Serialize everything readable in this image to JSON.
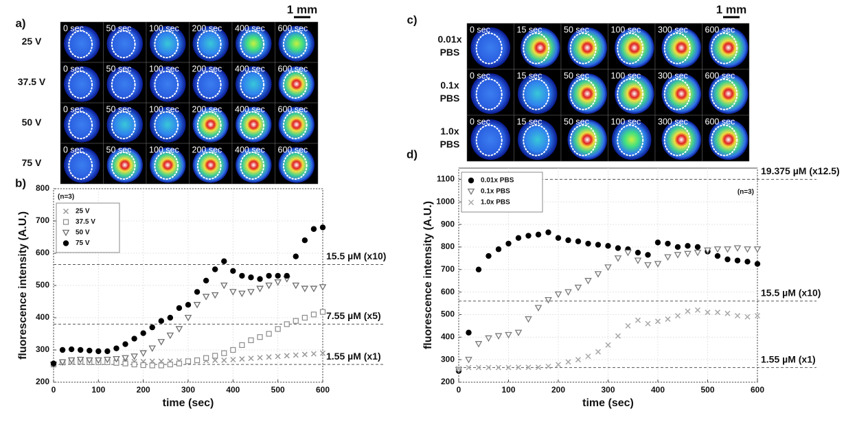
{
  "image_panels": [
    {
      "panel_label": "a)",
      "scale_bar": "1 mm",
      "rows": [
        "25 V",
        "37.5 V",
        "50 V",
        "75 V"
      ],
      "times": [
        "0 sec",
        "50 sec",
        "100 sec",
        "200 sec",
        "400 sec",
        "600 sec"
      ]
    },
    {
      "panel_label": "c)",
      "scale_bar": "1 mm",
      "rows": [
        [
          "0.01x",
          "PBS"
        ],
        [
          "0.1x",
          "PBS"
        ],
        [
          "1.0x",
          "PBS"
        ]
      ],
      "times": [
        "0 sec",
        "15 sec",
        "50 sec",
        "100 sec",
        "300 sec",
        "600 sec"
      ]
    }
  ],
  "chart_data": [
    {
      "type": "scatter",
      "panel_label": "b)",
      "x_label": "time (sec)",
      "y_label": "fluorescence intensity (A.U.)",
      "note": "(n=3)",
      "x": [
        0,
        20,
        40,
        60,
        80,
        100,
        120,
        140,
        160,
        180,
        200,
        220,
        240,
        260,
        280,
        300,
        320,
        340,
        360,
        380,
        400,
        420,
        440,
        460,
        480,
        500,
        520,
        540,
        560,
        580,
        600
      ],
      "series": [
        {
          "name": "25 V",
          "marker": "x",
          "color": "#9a9a9a",
          "values": [
            255,
            260,
            262,
            262,
            262,
            263,
            263,
            263,
            264,
            264,
            264,
            265,
            265,
            265,
            266,
            266,
            266,
            267,
            268,
            268,
            270,
            272,
            274,
            276,
            278,
            280,
            282,
            284,
            286,
            288,
            290
          ]
        },
        {
          "name": "37.5 V",
          "marker": "square",
          "color": "#8a8a8a",
          "values": [
            255,
            262,
            264,
            264,
            262,
            262,
            262,
            260,
            258,
            255,
            253,
            252,
            252,
            255,
            258,
            265,
            268,
            275,
            282,
            290,
            300,
            315,
            330,
            340,
            350,
            365,
            380,
            390,
            400,
            410,
            418
          ]
        },
        {
          "name": "50 V",
          "marker": "triangle-down",
          "color": "#6e6e6e",
          "values": [
            255,
            262,
            268,
            270,
            268,
            268,
            270,
            272,
            275,
            280,
            290,
            305,
            325,
            345,
            365,
            400,
            440,
            465,
            470,
            500,
            480,
            475,
            480,
            490,
            500,
            510,
            520,
            500,
            490,
            490,
            495
          ]
        },
        {
          "name": "75 V",
          "marker": "circle",
          "color": "#000000",
          "values": [
            258,
            300,
            302,
            300,
            298,
            296,
            296,
            305,
            318,
            335,
            352,
            370,
            390,
            400,
            430,
            440,
            480,
            515,
            550,
            575,
            545,
            530,
            525,
            520,
            530,
            530,
            530,
            590,
            640,
            675,
            680
          ]
        }
      ],
      "reference_lines": [
        {
          "value": 565,
          "label": "15.5 µM (x10)"
        },
        {
          "value": 380,
          "label": "7.55 µM (x5)"
        },
        {
          "value": 255,
          "label": "1.55 µM (x1)"
        }
      ],
      "xlim": [
        0,
        600
      ],
      "xticks": [
        0,
        100,
        200,
        300,
        400,
        500,
        600
      ],
      "ylim": [
        200,
        800
      ],
      "yticks": [
        200,
        300,
        400,
        500,
        600,
        700,
        800
      ],
      "grid": true
    },
    {
      "type": "scatter",
      "panel_label": "d)",
      "x_label": "time (sec)",
      "y_label": "fluorescence intensity (A.U.)",
      "note": "(n=3)",
      "x": [
        0,
        20,
        40,
        60,
        80,
        100,
        120,
        140,
        160,
        180,
        200,
        220,
        240,
        260,
        280,
        300,
        320,
        340,
        360,
        380,
        400,
        420,
        440,
        460,
        480,
        500,
        520,
        540,
        560,
        580,
        600
      ],
      "series": [
        {
          "name": "0.01x PBS",
          "marker": "circle",
          "color": "#000000",
          "values": [
            250,
            420,
            700,
            760,
            790,
            815,
            840,
            850,
            855,
            865,
            840,
            830,
            825,
            815,
            810,
            805,
            795,
            790,
            775,
            765,
            820,
            815,
            800,
            805,
            800,
            780,
            760,
            745,
            740,
            735,
            725
          ]
        },
        {
          "name": "0.1x PBS",
          "marker": "triangle-down",
          "color": "#7a7a7a",
          "values": [
            255,
            300,
            370,
            395,
            405,
            410,
            420,
            480,
            530,
            565,
            590,
            600,
            620,
            650,
            680,
            710,
            750,
            775,
            740,
            720,
            725,
            755,
            765,
            770,
            775,
            785,
            790,
            790,
            795,
            790,
            790
          ]
        },
        {
          "name": "1.0x PBS",
          "marker": "x",
          "color": "#a8a8a8",
          "values": [
            260,
            265,
            265,
            265,
            265,
            265,
            266,
            266,
            266,
            270,
            278,
            290,
            300,
            315,
            335,
            365,
            405,
            450,
            475,
            460,
            470,
            480,
            495,
            515,
            520,
            510,
            510,
            505,
            495,
            490,
            495
          ]
        }
      ],
      "reference_lines": [
        {
          "value": 1100,
          "label": "19.375 µM (x12.5)"
        },
        {
          "value": 560,
          "label": "15.5 µM (x10)"
        },
        {
          "value": 265,
          "label": "1.55 µM (x1)"
        }
      ],
      "xlim": [
        0,
        600
      ],
      "xticks": [
        0,
        100,
        200,
        300,
        400,
        500,
        600
      ],
      "ylim": [
        200,
        1150
      ],
      "yticks": [
        200,
        300,
        400,
        500,
        600,
        700,
        800,
        900,
        1000,
        1100
      ],
      "grid": true
    }
  ]
}
